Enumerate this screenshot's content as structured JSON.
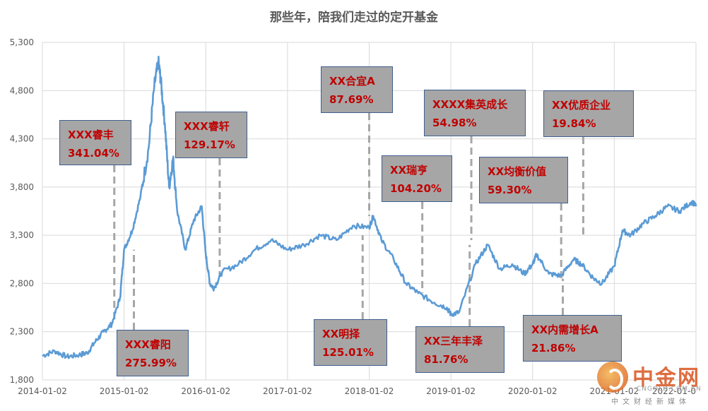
{
  "chart_data": {
    "type": "line",
    "title": "那些年，陪我们走过的定开基金",
    "xlabel": "",
    "ylabel": "",
    "ylim": [
      1800,
      5300
    ],
    "yticks": [
      "1,800",
      "2,300",
      "2,800",
      "3,300",
      "3,800",
      "4,300",
      "4,800",
      "5,300"
    ],
    "xticks": [
      "2014-01-02",
      "2015-01-02",
      "2016-01-02",
      "2017-01-02",
      "2018-01-02",
      "2019-01-02",
      "2020-01-02",
      "2021-01-02",
      "2022-01-0"
    ],
    "grid": true,
    "line_color": "#5b9bd5",
    "x": [
      2014.0,
      2014.15,
      2014.3,
      2014.45,
      2014.55,
      2014.65,
      2014.75,
      2014.85,
      2014.95,
      2015.0,
      2015.1,
      2015.2,
      2015.3,
      2015.37,
      2015.42,
      2015.45,
      2015.5,
      2015.55,
      2015.6,
      2015.65,
      2015.75,
      2015.85,
      2015.95,
      2016.0,
      2016.05,
      2016.1,
      2016.2,
      2016.4,
      2016.6,
      2016.8,
      2017.0,
      2017.2,
      2017.4,
      2017.6,
      2017.8,
      2018.0,
      2018.05,
      2018.15,
      2018.3,
      2018.45,
      2018.6,
      2018.8,
      2018.95,
      2019.0,
      2019.1,
      2019.3,
      2019.45,
      2019.6,
      2019.75,
      2019.9,
      2020.0,
      2020.05,
      2020.2,
      2020.35,
      2020.5,
      2020.6,
      2020.75,
      2020.85,
      2021.0,
      2021.1,
      2021.2,
      2021.35,
      2021.5,
      2021.65,
      2021.8,
      2021.95,
      2022.0
    ],
    "values": [
      2050,
      2100,
      2040,
      2060,
      2080,
      2200,
      2300,
      2380,
      2650,
      3150,
      3350,
      3700,
      4200,
      4850,
      5100,
      4900,
      4450,
      3800,
      4100,
      3550,
      3150,
      3450,
      3600,
      3100,
      2800,
      2750,
      2920,
      3000,
      3150,
      3250,
      3150,
      3200,
      3300,
      3250,
      3400,
      3380,
      3500,
      3250,
      3050,
      2800,
      2700,
      2600,
      2550,
      2480,
      2500,
      3000,
      3200,
      2950,
      3000,
      2900,
      3000,
      3100,
      2900,
      2880,
      3050,
      3000,
      2850,
      2800,
      2980,
      3350,
      3300,
      3420,
      3500,
      3600,
      3550,
      3650,
      3600
    ],
    "annotations": [
      {
        "name": "XXX睿丰",
        "value": "341.04%",
        "date": 2014.88,
        "y": 2400
      },
      {
        "name": "XXX睿阳",
        "value": "275.99%",
        "date": 2015.12,
        "y": 3150
      },
      {
        "name": "XXX睿轩",
        "value": "129.17%",
        "date": 2016.17,
        "y": 2900
      },
      {
        "name": "XX明择",
        "value": "125.01%",
        "date": 2017.92,
        "y": 3300
      },
      {
        "name": "XX合宜A",
        "value": "87.69%",
        "date": 2018.0,
        "y": 3500
      },
      {
        "name": "XX瑞亨",
        "value": "104.20%",
        "date": 2018.65,
        "y": 2700
      },
      {
        "name": "XX三年丰泽",
        "value": "81.76%",
        "date": 2019.23,
        "y": 3200
      },
      {
        "name": "XXXX集英成长",
        "value": "54.98%",
        "date": 2019.25,
        "y": 3250
      },
      {
        "name": "XX均衡价值",
        "value": "59.30%",
        "date": 2020.35,
        "y": 2850
      },
      {
        "name": "XX内需增长A",
        "value": "21.86%",
        "date": 2020.37,
        "y": 2850
      },
      {
        "name": "XX优质企业",
        "value": "19.84%",
        "date": 2020.62,
        "y": 3300
      }
    ]
  },
  "watermark": {
    "name": "中金网",
    "site": "CNGOLD.COM.CN",
    "sub": "中文财经新媒体"
  }
}
